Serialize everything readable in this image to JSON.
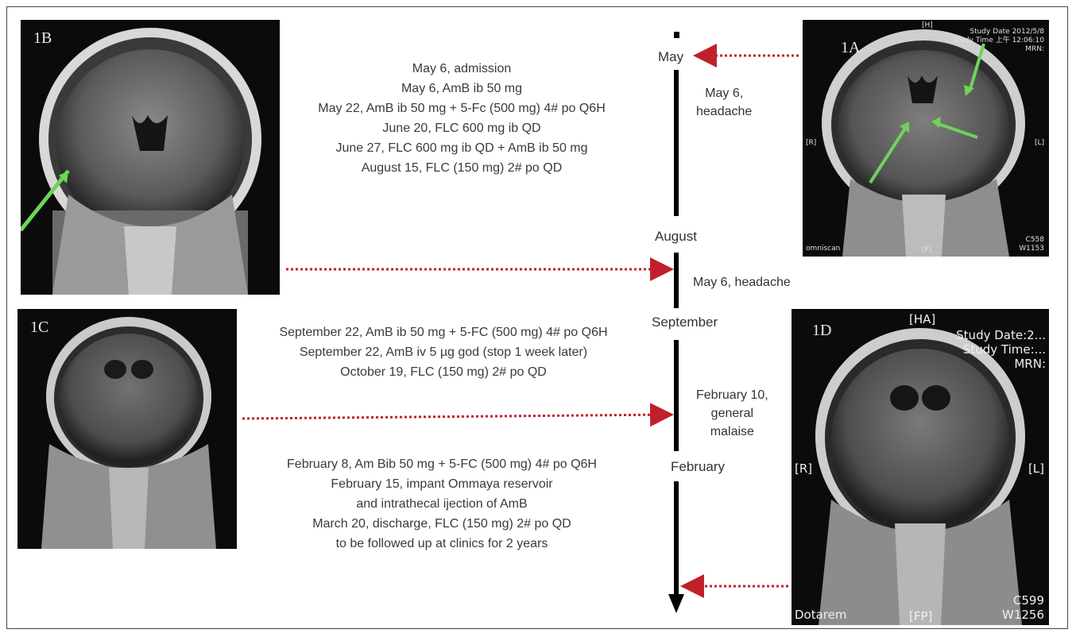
{
  "panels": {
    "p1a": {
      "label": "1A",
      "overlay_top": [
        "Study Date 2012/5/8",
        "Study Time 上午 12:06:10",
        "MRN:"
      ],
      "marker_top": "[H]",
      "marker_left": "[R]",
      "marker_right": "[L]",
      "marker_bottom": "[F]",
      "corner_bl": "omniscan",
      "corner_br": [
        "C558",
        "W1153"
      ]
    },
    "p1b": {
      "label": "1B"
    },
    "p1c": {
      "label": "1C"
    },
    "p1d": {
      "label": "1D",
      "marker_top": "[HA]",
      "overlay_top": [
        "Study Date:2...",
        "Study Time:...",
        "MRN:"
      ],
      "marker_left": "[R]",
      "marker_right": "[L]",
      "marker_bottom": "[FP]",
      "corner_bl": "Dotarem",
      "corner_br": [
        "C599",
        "W1256"
      ]
    }
  },
  "treatment_blocks": {
    "block1": [
      "May 6, admission",
      "May 6, AmB ib 50 mg",
      "May 22, AmB ib 50 mg + 5-Fc (500 mg) 4# po Q6H",
      "June 20, FLC 600 mg ib QD",
      "June 27, FLC 600 mg ib QD + AmB ib 50 mg",
      "August 15, FLC (150 mg) 2# po QD"
    ],
    "block2": [
      "September 22, AmB ib 50 mg + 5-FC (500 mg) 4# po Q6H",
      "September 22, AmB iv 5 µg god (stop 1 week later)",
      "October 19, FLC (150 mg) 2# po QD"
    ],
    "block3": [
      "February 8, Am Bib 50 mg + 5-FC (500 mg) 4# po Q6H",
      "February 15, impant Ommaya reservoir",
      "and intrathecal ijection of AmB",
      "March 20, discharge, FLC (150 mg) 2# po QD",
      "to be followed up at clinics for 2 years"
    ]
  },
  "timeline": {
    "months": {
      "may": "May",
      "august": "August",
      "september": "September",
      "february": "February"
    },
    "notes": {
      "note1": [
        "May 6,",
        "headache"
      ],
      "note2": [
        "May 6, headache"
      ],
      "note3": [
        "February 10,",
        "general",
        "malaise"
      ]
    }
  },
  "colors": {
    "arrow_dotted": "#c0202a",
    "arrow_mri": "#6fd35a",
    "timeline": "#000000"
  }
}
